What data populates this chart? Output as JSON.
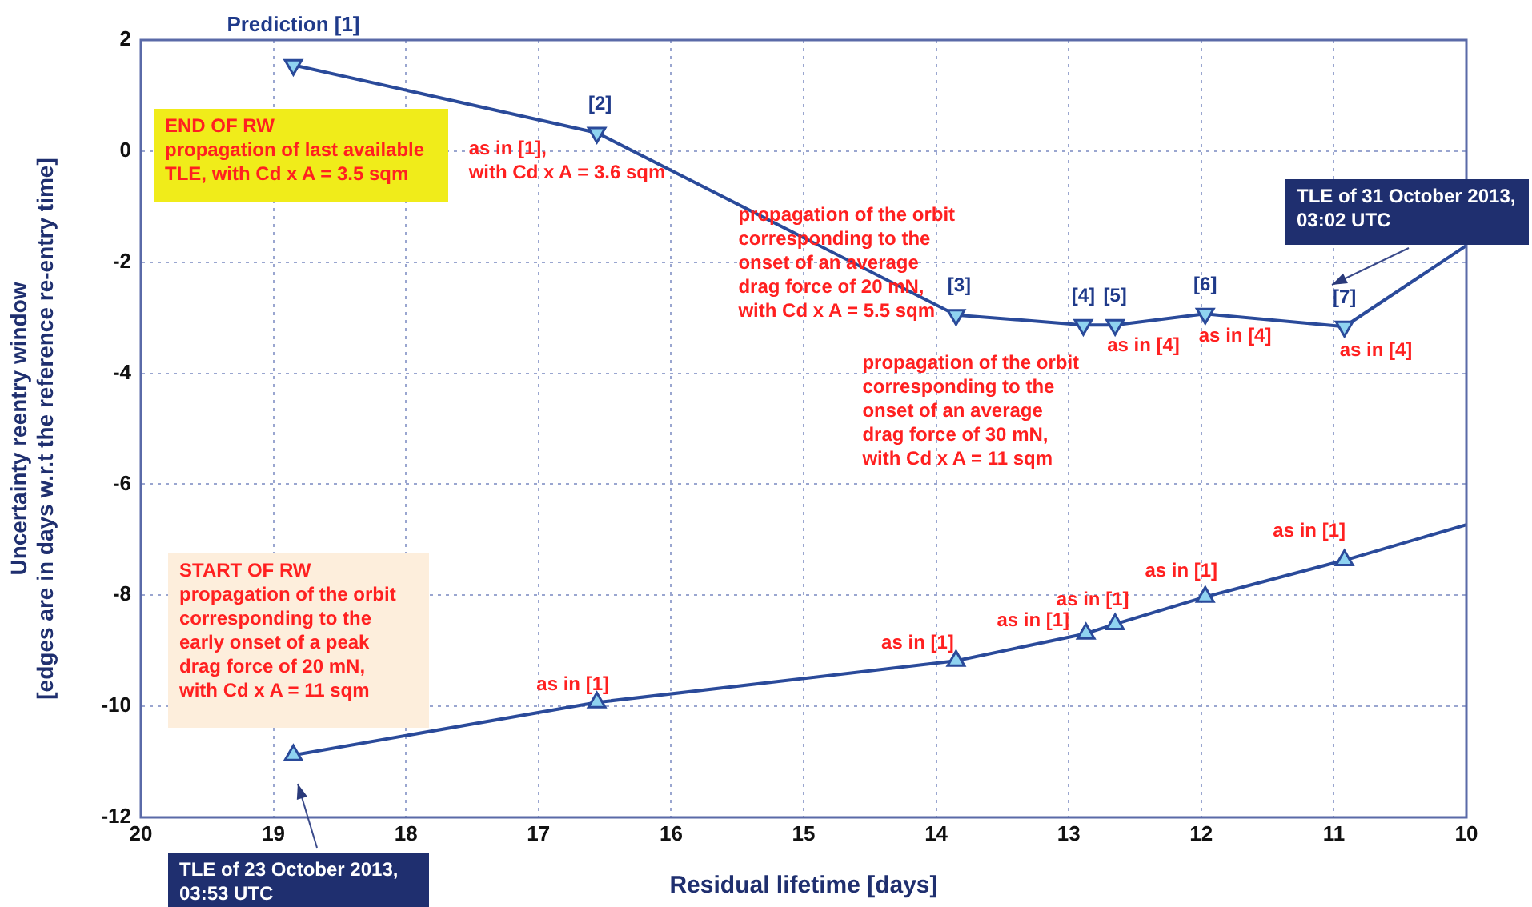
{
  "chart_data": {
    "type": "line",
    "xlabel": "Residual lifetime [days]",
    "ylabel": "Uncertainty reentry window\n[edges are in days w.r.t the reference re-entry time]",
    "xlim": [
      20,
      10
    ],
    "xticks": [
      20,
      19,
      18,
      17,
      16,
      15,
      14,
      13,
      12,
      11,
      10
    ],
    "ylim": [
      -12,
      2
    ],
    "yticks": [
      -12,
      -10,
      -8,
      -6,
      -4,
      -2,
      0,
      2
    ],
    "grid": true,
    "legend": false,
    "line_style": "solid",
    "series": [
      {
        "color": "#2a4a9a",
        "marker": "triangle",
        "x": [
          18.85,
          16.56,
          13.85,
          12.89,
          12.65,
          11.97,
          10.92
        ],
        "values": [
          1.55,
          0.33,
          -2.95,
          -3.13,
          -3.13,
          -2.93,
          -3.16
        ]
      },
      {
        "color": "#2a4a9a",
        "marker": "none",
        "x": [
          10.92,
          10
        ],
        "values": [
          -3.16,
          -1.7
        ]
      },
      {
        "color": "#2a4a9a",
        "marker": "triangle",
        "x": [
          18.85,
          16.56,
          13.85,
          12.87,
          12.65,
          11.97,
          10.92
        ],
        "values": [
          -10.88,
          -9.93,
          -9.18,
          -8.69,
          -8.52,
          -8.03,
          -7.37
        ]
      },
      {
        "color": "#2a4a9a",
        "marker": "none",
        "x": [
          10.92,
          10
        ],
        "values": [
          -7.37,
          -6.73
        ]
      }
    ],
    "annotations": [
      {
        "text": "Prediction [1]",
        "x": 18.85,
        "y": 1.55
      },
      {
        "text": "[2]",
        "x": 16.56,
        "y": 0.33
      },
      {
        "text": "[3]",
        "x": 13.85,
        "y": -2.95
      },
      {
        "text": "[4]",
        "x": 12.89,
        "y": -3.13
      },
      {
        "text": "[5]",
        "x": 12.65,
        "y": -3.13
      },
      {
        "text": "[6]",
        "x": 11.97,
        "y": -2.93
      },
      {
        "text": "[7]",
        "x": 10.92,
        "y": -3.16
      },
      {
        "text": "as in [1],\nwith Cd x A = 3.6 sqm",
        "x": 16.56,
        "y": 0.33
      },
      {
        "text": "propagation of the orbit\ncorresponding to the\nonset of an average\ndrag force of 20 mN,\nwith Cd x A = 5.5 sqm",
        "x": 13.85,
        "y": -2.95
      },
      {
        "text": "propagation of the orbit\ncorresponding to the\nonset of an average\ndrag force of 30 mN,\nwith Cd x A = 11 sqm",
        "x": 12.89,
        "y": -3.13
      },
      {
        "text": "as in [4]",
        "x": 12.65,
        "y": -3.13
      },
      {
        "text": "as in [4]",
        "x": 11.97,
        "y": -2.93
      },
      {
        "text": "as in [4]",
        "x": 10.92,
        "y": -3.16
      },
      "TLE of 31 October 2013,\n03:02 UTC",
      "END OF RW\npropagation of last available\nTLE, with Cd x A = 3.5 sqm",
      "START OF RW\npropagation of the orbit\ncorresponding to the\nearly onset of a peak\ndrag force of 20 mN,\nwith Cd x A = 11 sqm",
      {
        "text": "as in [1]",
        "x": 16.56,
        "y": -9.93
      },
      {
        "text": "as in [1]",
        "x": 13.85,
        "y": -9.18
      },
      {
        "text": "as in [1]",
        "x": 12.87,
        "y": -8.69
      },
      {
        "text": "as in [1]",
        "x": 12.65,
        "y": -8.52
      },
      {
        "text": "as in [1]",
        "x": 11.97,
        "y": -8.03
      },
      {
        "text": "as in [1]",
        "x": 10.92,
        "y": -7.37
      },
      "TLE of 23 October 2013,\n03:53 UTC"
    ]
  }
}
